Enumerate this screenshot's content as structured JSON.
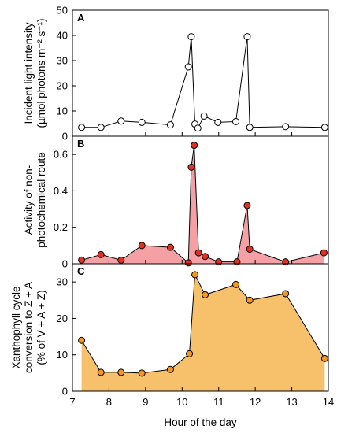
{
  "xlabel": "Hour of the day",
  "x_ticks": [
    7,
    8,
    9,
    10,
    11,
    12,
    13,
    14
  ],
  "chart_data": [
    {
      "type": "line",
      "panel": "A",
      "ylabel_lines": [
        "Incident light intensity",
        "(µmol photons m⁻² s⁻¹)"
      ],
      "xlim": [
        7,
        14
      ],
      "ylim": [
        0,
        50
      ],
      "y_ticks": [
        0,
        10,
        20,
        30,
        40,
        50
      ],
      "marker_fill": "#ffffff",
      "fill_color": null,
      "series": [
        {
          "x": [
            7.25,
            7.78,
            8.33,
            8.9,
            9.68,
            10.17,
            10.25,
            10.35,
            10.43,
            10.6,
            10.98,
            11.47,
            11.78,
            11.85,
            12.83,
            13.9
          ],
          "values": [
            3.5,
            3.5,
            6.0,
            5.5,
            4.5,
            27.5,
            39.5,
            4.8,
            3.2,
            8.0,
            5.5,
            5.8,
            39.5,
            3.5,
            3.8,
            3.5
          ]
        }
      ]
    },
    {
      "type": "area",
      "panel": "B",
      "ylabel_lines": [
        "Activity of non-",
        "photochemical route"
      ],
      "xlim": [
        7,
        14
      ],
      "ylim": [
        0,
        0.7
      ],
      "y_ticks": [
        0,
        0.2,
        0.4,
        0.6
      ],
      "marker_fill": "#e53020",
      "fill_color": "#f4a0a4",
      "series": [
        {
          "x": [
            7.25,
            7.78,
            8.33,
            8.9,
            9.68,
            10.17,
            10.25,
            10.33,
            10.45,
            10.63,
            11.0,
            11.5,
            11.78,
            11.85,
            12.83,
            13.88
          ],
          "values": [
            0.02,
            0.05,
            0.02,
            0.1,
            0.09,
            0.005,
            0.53,
            0.65,
            0.06,
            0.04,
            0.01,
            0.01,
            0.32,
            0.08,
            0.01,
            0.06
          ]
        }
      ]
    },
    {
      "type": "area",
      "panel": "C",
      "ylabel_lines": [
        "Xanthophyll cycle",
        "conversion to Z + A",
        "(% of V + A + Z)"
      ],
      "xlim": [
        7,
        14
      ],
      "ylim": [
        0,
        35
      ],
      "y_ticks": [
        0,
        10,
        20,
        30
      ],
      "marker_fill": "#f5961e",
      "fill_color": "#f7c06a",
      "series": [
        {
          "x": [
            7.25,
            7.78,
            8.33,
            8.9,
            9.68,
            10.2,
            10.35,
            10.63,
            11.47,
            11.85,
            12.83,
            13.9
          ],
          "values": [
            14,
            5.2,
            5.2,
            5.0,
            6.0,
            10.3,
            32,
            26.5,
            29.3,
            25,
            26.8,
            9
          ]
        }
      ]
    }
  ]
}
